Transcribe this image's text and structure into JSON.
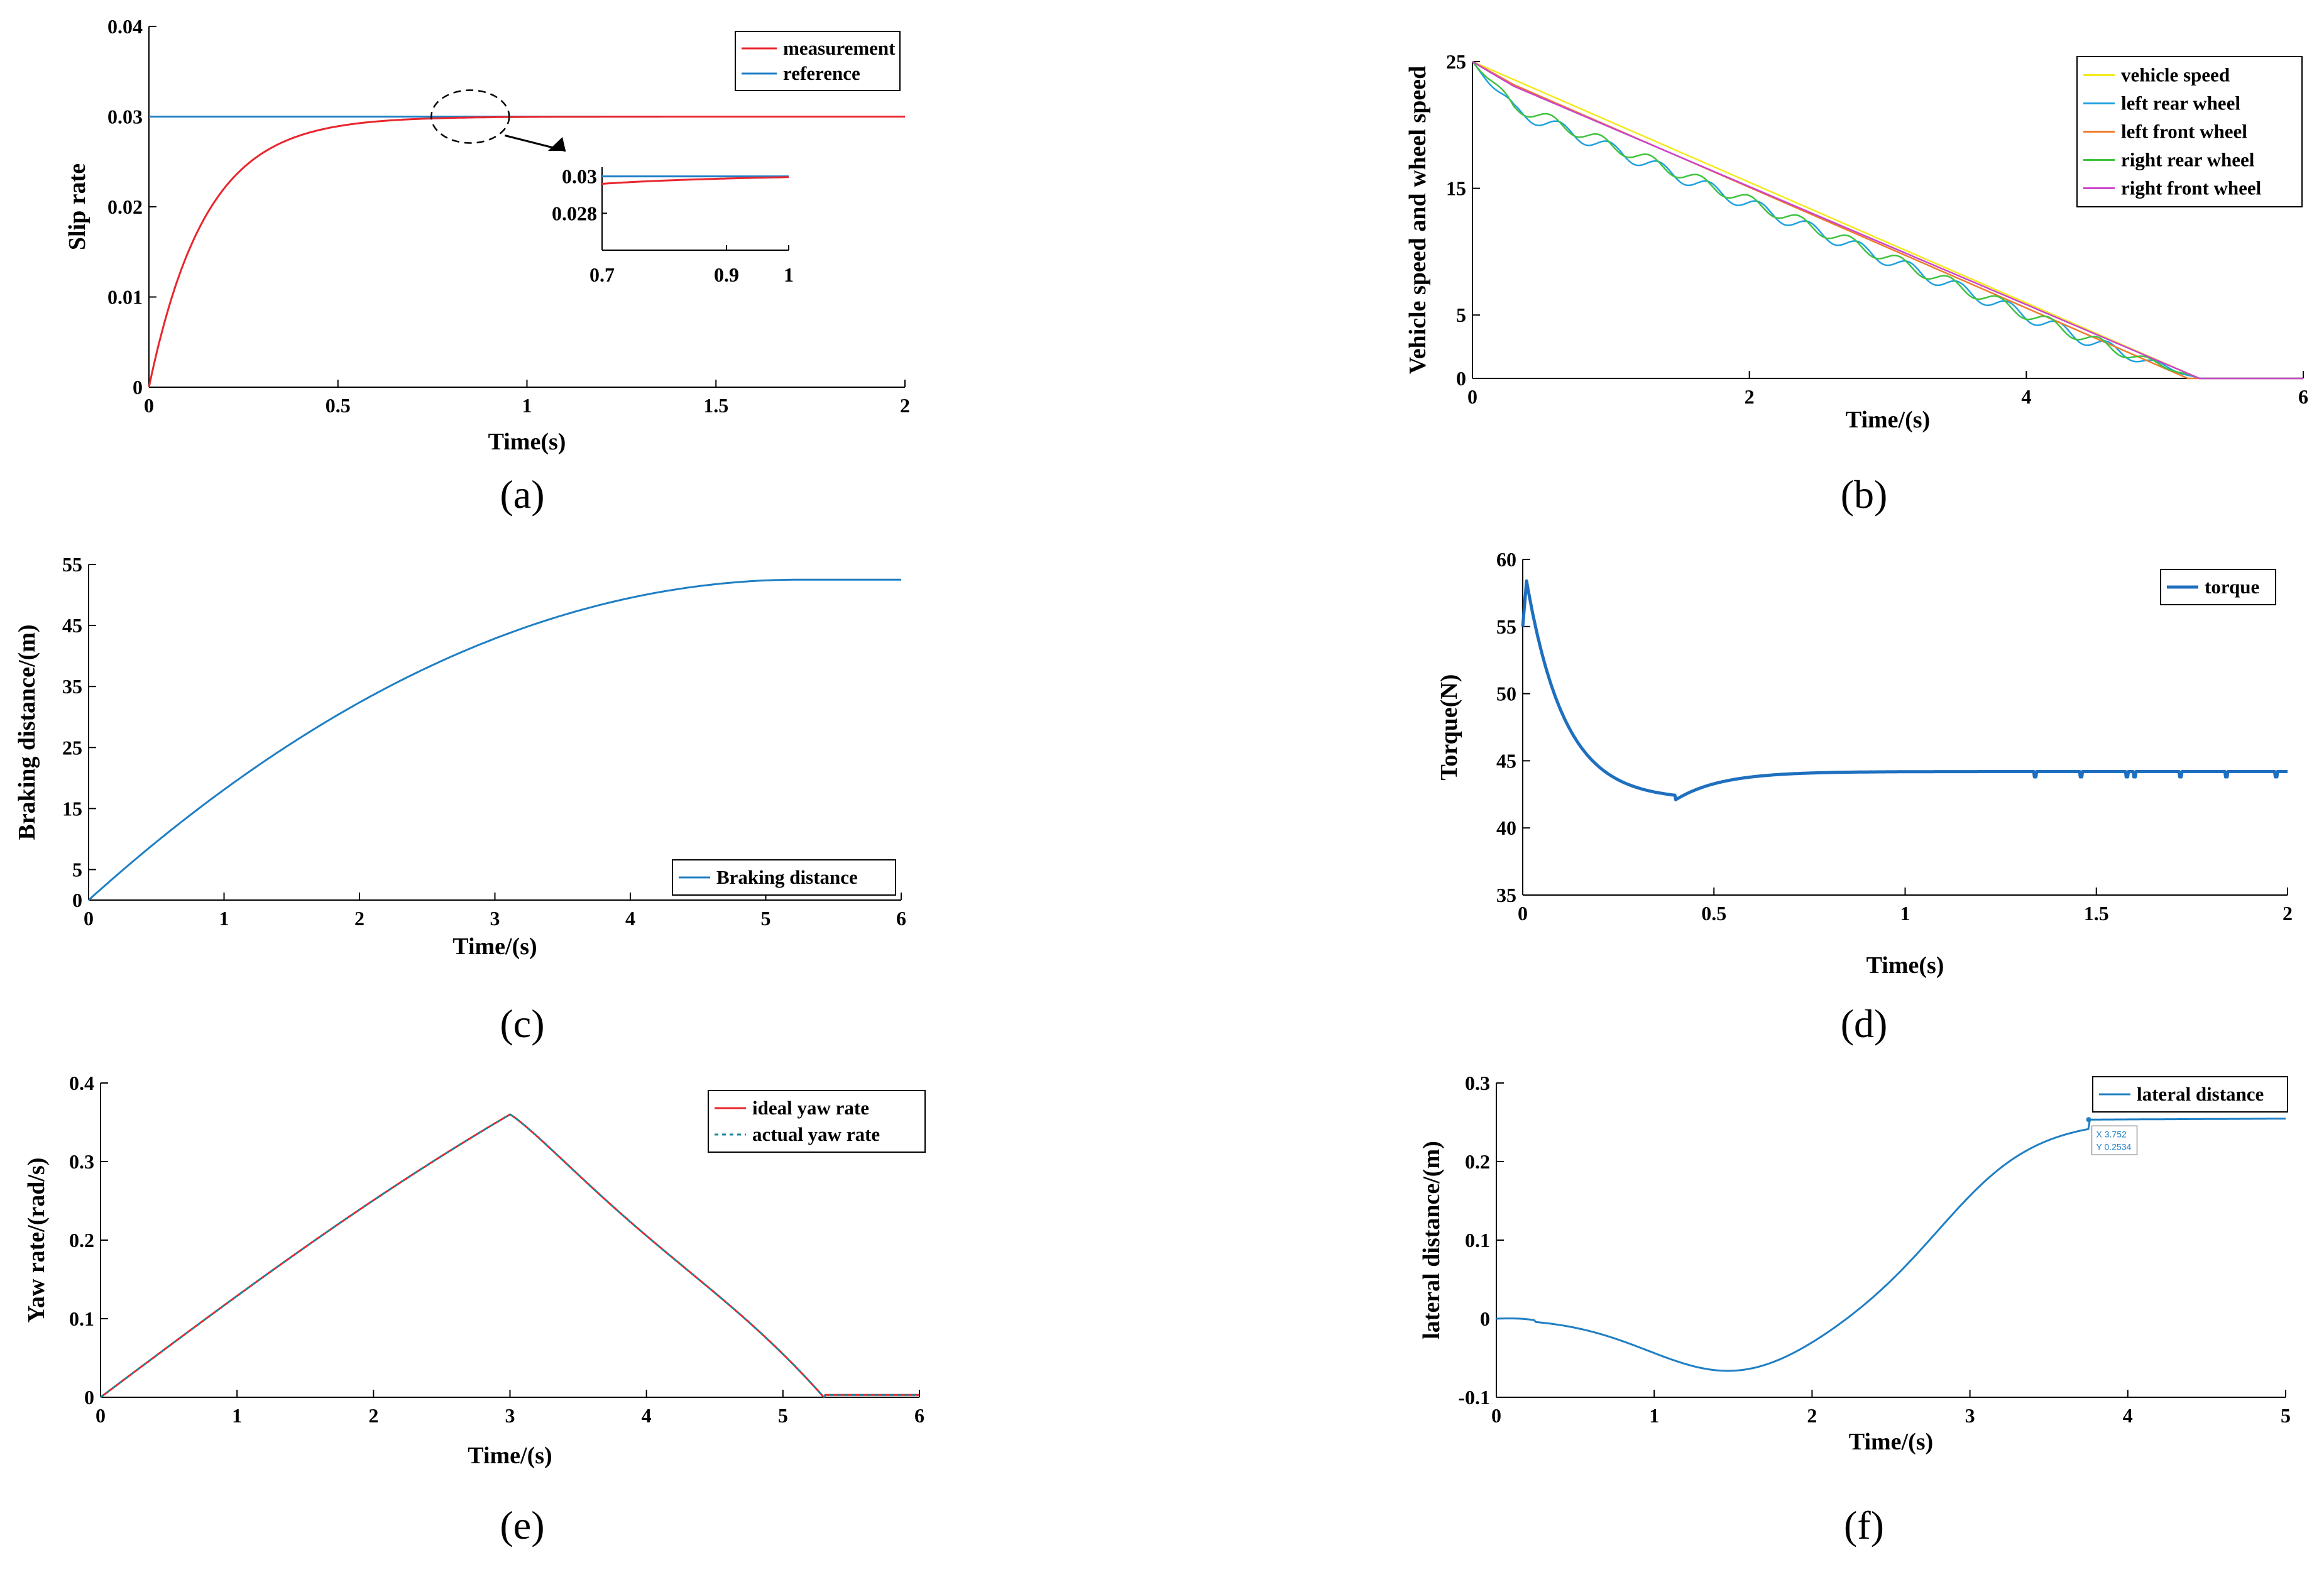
{
  "chart_data": [
    {
      "id": "a",
      "type": "line",
      "caption": "(a)",
      "xlabel": "Time(s)",
      "ylabel": "Slip rate",
      "xlim": [
        0,
        2
      ],
      "ylim": [
        0,
        0.04
      ],
      "xticks": [
        0,
        0.5,
        1,
        1.5,
        2
      ],
      "xtick_labels": [
        "0",
        "0.5",
        "1",
        "1.5",
        "2"
      ],
      "yticks": [
        0,
        0.01,
        0.02,
        0.03,
        0.04
      ],
      "ytick_labels": [
        "0",
        "0.01",
        "0.02",
        "0.03",
        "0.04"
      ],
      "series": [
        {
          "name": "measurement",
          "color": "#e8262e",
          "kind": "exp",
          "final": 0.03,
          "tau": 0.15
        },
        {
          "name": "reference",
          "color": "#1f7fc4",
          "kind": "const",
          "value": 0.03
        }
      ],
      "inset": {
        "xlim": [
          0.7,
          1
        ],
        "ylim": [
          0.026,
          0.0305
        ],
        "xtick_labels": [
          "0.7",
          "0.9",
          "1"
        ],
        "xticks": [
          0.7,
          0.9,
          1
        ],
        "ytick_labels": [
          "0.03",
          "0.028"
        ],
        "yticks": [
          0.03,
          0.028
        ]
      }
    },
    {
      "id": "b",
      "type": "line",
      "caption": "(b)",
      "xlabel": "Time/(s)",
      "ylabel": "Vehicle speed and wheel speed",
      "xlim": [
        0,
        6
      ],
      "ylim": [
        0,
        25
      ],
      "xticks": [
        0,
        2,
        4,
        6
      ],
      "xtick_labels": [
        "0",
        "2",
        "4",
        "6"
      ],
      "yticks": [
        0,
        5,
        15,
        25
      ],
      "ytick_labels": [
        "0",
        "5",
        "15",
        "25"
      ],
      "series": [
        {
          "name": "vehicle speed",
          "color": "#f2ea1c"
        },
        {
          "name": "left rear wheel",
          "color": "#1fa0e0"
        },
        {
          "name": "left front wheel",
          "color": "#f07b2b"
        },
        {
          "name": "right rear wheel",
          "color": "#3fc23f"
        },
        {
          "name": "right front wheel",
          "color": "#cc44cc"
        }
      ],
      "stop_time": 5.25
    },
    {
      "id": "c",
      "type": "line",
      "caption": "(c)",
      "xlabel": "Time/(s)",
      "ylabel": "Braking distance/(m)",
      "xlim": [
        0,
        6
      ],
      "ylim": [
        0,
        55
      ],
      "xticks": [
        0,
        1,
        2,
        3,
        4,
        5,
        6
      ],
      "xtick_labels": [
        "0",
        "1",
        "2",
        "3",
        "4",
        "5",
        "6"
      ],
      "yticks": [
        0,
        5,
        15,
        25,
        35,
        45,
        55
      ],
      "ytick_labels": [
        "0",
        "5",
        "15",
        "25",
        "35",
        "45",
        "55"
      ],
      "series": [
        {
          "name": "Braking distance",
          "color": "#1f7fc4",
          "stop_time": 5.25,
          "final": 52.5
        }
      ]
    },
    {
      "id": "d",
      "type": "line",
      "caption": "(d)",
      "xlabel": "Time(s)",
      "ylabel": "Torque(N)",
      "xlim": [
        0,
        2
      ],
      "ylim": [
        35,
        60
      ],
      "xticks": [
        0,
        0.5,
        1,
        1.5,
        2
      ],
      "xtick_labels": [
        "0",
        "0.5",
        "1",
        "1.5",
        "2"
      ],
      "yticks": [
        35,
        40,
        45,
        50,
        55,
        60
      ],
      "ytick_labels": [
        "35",
        "40",
        "45",
        "50",
        "55",
        "60"
      ],
      "series": [
        {
          "name": "torque",
          "color": "#1f6fbf"
        }
      ]
    },
    {
      "id": "e",
      "type": "line",
      "caption": "(e)",
      "xlabel": "Time/(s)",
      "ylabel": "Yaw rate/(rad/s)",
      "xlim": [
        0,
        6
      ],
      "ylim": [
        0,
        0.4
      ],
      "xticks": [
        0,
        1,
        2,
        3,
        4,
        5,
        6
      ],
      "xtick_labels": [
        "0",
        "1",
        "2",
        "3",
        "4",
        "5",
        "6"
      ],
      "yticks": [
        0,
        0.1,
        0.2,
        0.3,
        0.4
      ],
      "ytick_labels": [
        "0",
        "0.1",
        "0.2",
        "0.3",
        "0.4"
      ],
      "series": [
        {
          "name": "ideal yaw rate",
          "color": "#e8262e"
        },
        {
          "name": "actual yaw rate",
          "color": "#1a8a9a"
        }
      ],
      "peak": {
        "x": 3,
        "y": 0.36
      },
      "end_time": 5.3
    },
    {
      "id": "f",
      "type": "line",
      "caption": "(f)",
      "xlabel": "Time/(s)",
      "ylabel": "lateral distance/(m)",
      "xlim": [
        0,
        5
      ],
      "ylim": [
        -0.1,
        0.3
      ],
      "xticks": [
        0,
        1,
        2,
        3,
        4,
        5
      ],
      "xtick_labels": [
        "0",
        "1",
        "2",
        "3",
        "4",
        "5"
      ],
      "yticks": [
        -0.1,
        0,
        0.1,
        0.2,
        0.3
      ],
      "ytick_labels": [
        "-0.1",
        "0",
        "0.1",
        "0.2",
        "0.3"
      ],
      "series": [
        {
          "name": "lateral distance",
          "color": "#1f7fc4"
        }
      ],
      "datatip": {
        "x_label": "X 3.752",
        "y_label": "Y 0.2534",
        "x": 3.752,
        "y": 0.2534
      }
    }
  ]
}
